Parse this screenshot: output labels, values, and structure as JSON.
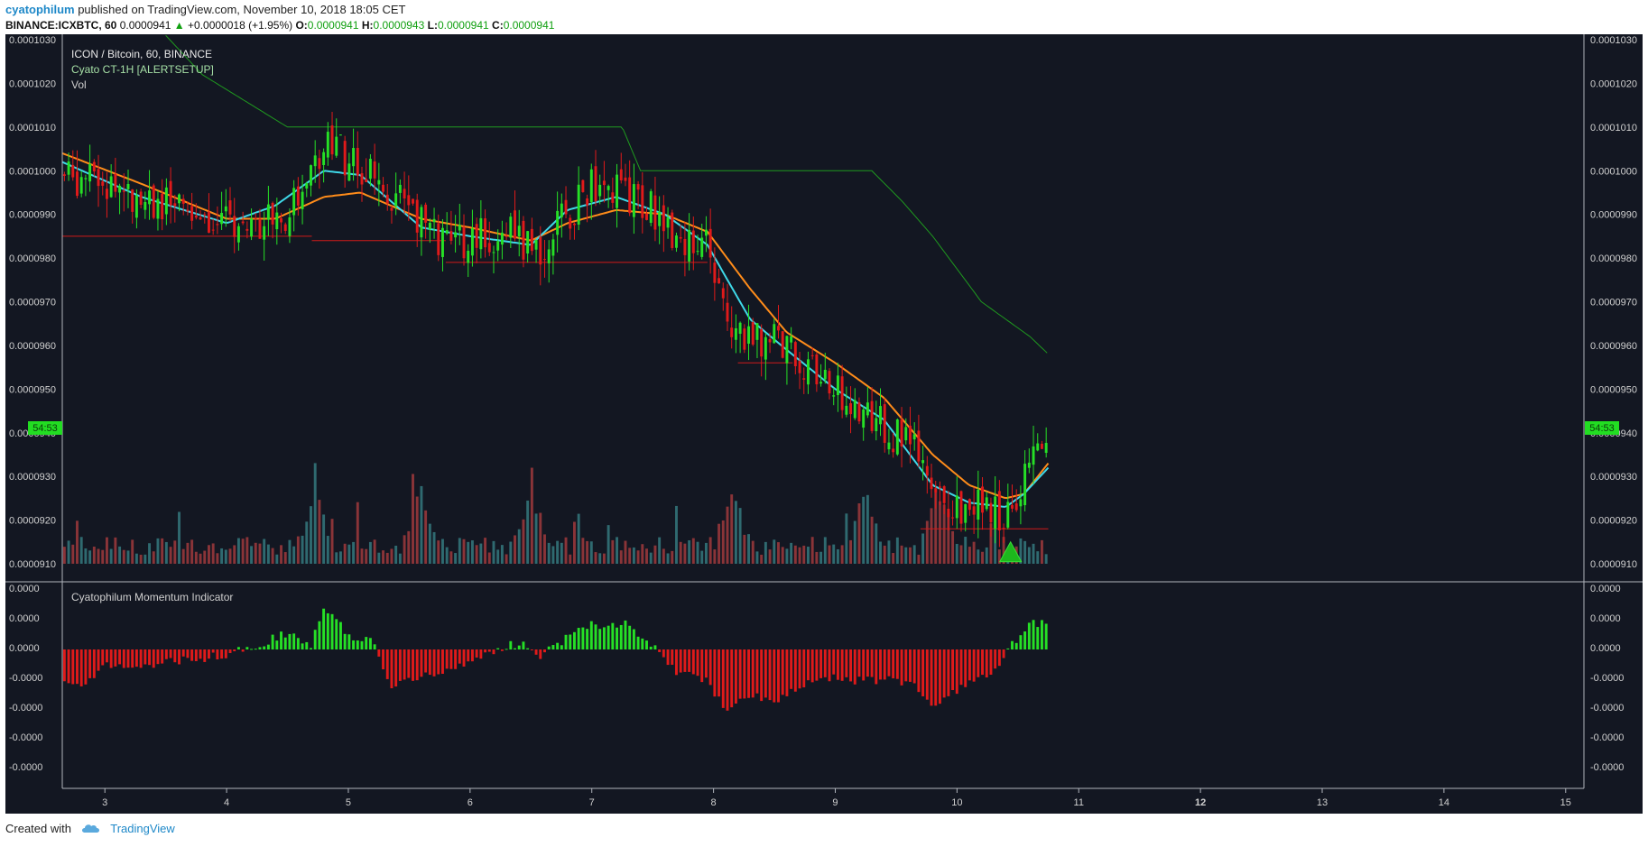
{
  "header": {
    "author": "cyatophilum",
    "published": "published on TradingView.com, November 10, 2018 18:05 CET",
    "symbol": "BINANCE:ICXBTC, 60",
    "last": "0.0000941",
    "change": "+0.0000018 (+1.95%)",
    "o_label": "O:",
    "o_val": "0.0000941",
    "h_label": "H:",
    "h_val": "0.0000943",
    "l_label": "L:",
    "l_val": "0.0000941",
    "c_label": "C:",
    "c_val": "0.0000941"
  },
  "legend": {
    "title": "ICON / Bitcoin, 60, BINANCE",
    "indicator": "Cyato CT-1H [ALERTSETUP]",
    "vol": "Vol",
    "momentum": "Cyatophilum Momentum Indicator"
  },
  "price_badge": "54:53",
  "footer": {
    "created": "Created with",
    "brand": "TradingView"
  },
  "colors": {
    "background": "#131722",
    "up": "#26e026",
    "down": "#e01a1a",
    "ema_fast": "#3fd8e8",
    "ema_slow": "#ff8c1a",
    "trail": "#1f9a1f",
    "support": "#d01a1a",
    "vol_up": "#2f6a70",
    "vol_down": "#8a3438"
  },
  "chart_data": {
    "type": "candlestick",
    "price_axis": {
      "ylim": [
        9.06e-05,
        0.0001031
      ],
      "ticks": [
        "0.0001030",
        "0.0001020",
        "0.0001010",
        "0.0001000",
        "0.0000990",
        "0.0000980",
        "0.0000970",
        "0.0000960",
        "0.0000950",
        "0.0000940",
        "0.0000930",
        "0.0000920",
        "0.0000910"
      ]
    },
    "momentum_axis": {
      "ticks": [
        "0.0000",
        "0.0000",
        "0.0000",
        "-0.0000",
        "-0.0000",
        "-0.0000",
        "-0.0000"
      ]
    },
    "x_axis": {
      "day_labels": [
        "3",
        "4",
        "5",
        "6",
        "7",
        "8",
        "9",
        "10",
        "11",
        "12",
        "13",
        "14",
        "15"
      ],
      "bold_labels": [
        "12"
      ],
      "day_range": [
        2.65,
        15.15
      ]
    },
    "price_keypoints": [
      [
        2.65,
        99.9
      ],
      [
        3.0,
        99.7
      ],
      [
        3.5,
        99.2
      ],
      [
        4.0,
        98.8
      ],
      [
        4.3,
        98.9
      ],
      [
        4.5,
        99.0
      ],
      [
        4.75,
        100.2
      ],
      [
        4.85,
        100.9
      ],
      [
        5.0,
        100.2
      ],
      [
        5.3,
        99.6
      ],
      [
        5.6,
        98.9
      ],
      [
        5.8,
        98.2
      ],
      [
        6.0,
        98.5
      ],
      [
        6.3,
        98.6
      ],
      [
        6.55,
        98.1
      ],
      [
        6.75,
        98.8
      ],
      [
        7.0,
        99.7
      ],
      [
        7.3,
        99.4
      ],
      [
        7.55,
        99.0
      ],
      [
        7.7,
        98.5
      ],
      [
        7.95,
        98.2
      ],
      [
        8.1,
        96.8
      ],
      [
        8.3,
        96.0
      ],
      [
        8.5,
        96.3
      ],
      [
        8.7,
        95.6
      ],
      [
        8.9,
        95.1
      ],
      [
        9.1,
        94.8
      ],
      [
        9.4,
        94.1
      ],
      [
        9.65,
        93.6
      ],
      [
        9.8,
        92.4
      ],
      [
        10.0,
        92.3
      ],
      [
        10.2,
        92.3
      ],
      [
        10.35,
        92.1
      ],
      [
        10.5,
        92.5
      ],
      [
        10.6,
        93.2
      ],
      [
        10.75,
        94.1
      ]
    ],
    "ema_slow_keypoints": [
      [
        2.65,
        100.4
      ],
      [
        3.3,
        99.7
      ],
      [
        4.0,
        98.9
      ],
      [
        4.4,
        98.9
      ],
      [
        4.8,
        99.4
      ],
      [
        5.1,
        99.5
      ],
      [
        5.6,
        98.9
      ],
      [
        6.0,
        98.7
      ],
      [
        6.5,
        98.4
      ],
      [
        6.8,
        98.8
      ],
      [
        7.2,
        99.1
      ],
      [
        7.6,
        99.0
      ],
      [
        7.95,
        98.6
      ],
      [
        8.3,
        97.3
      ],
      [
        8.6,
        96.3
      ],
      [
        9.0,
        95.6
      ],
      [
        9.4,
        94.8
      ],
      [
        9.8,
        93.5
      ],
      [
        10.1,
        92.8
      ],
      [
        10.4,
        92.5
      ],
      [
        10.55,
        92.6
      ],
      [
        10.75,
        93.3
      ]
    ],
    "ema_fast_keypoints": [
      [
        2.65,
        100.2
      ],
      [
        3.3,
        99.4
      ],
      [
        4.0,
        98.8
      ],
      [
        4.4,
        99.2
      ],
      [
        4.8,
        100.0
      ],
      [
        5.1,
        99.9
      ],
      [
        5.6,
        98.7
      ],
      [
        6.0,
        98.5
      ],
      [
        6.5,
        98.3
      ],
      [
        6.8,
        99.1
      ],
      [
        7.2,
        99.4
      ],
      [
        7.6,
        99.0
      ],
      [
        7.95,
        98.3
      ],
      [
        8.3,
        96.6
      ],
      [
        8.6,
        95.9
      ],
      [
        9.0,
        95.0
      ],
      [
        9.4,
        94.3
      ],
      [
        9.8,
        92.8
      ],
      [
        10.1,
        92.4
      ],
      [
        10.4,
        92.3
      ],
      [
        10.55,
        92.6
      ],
      [
        10.75,
        93.2
      ]
    ],
    "trail_keypoints": [
      [
        3.5,
        103.1
      ],
      [
        3.8,
        102.2
      ],
      [
        4.5,
        101.0
      ],
      [
        7.25,
        101.0
      ],
      [
        7.4,
        100.0
      ],
      [
        9.3,
        100.0
      ],
      [
        9.55,
        99.3
      ],
      [
        9.8,
        98.5
      ],
      [
        10.2,
        97.0
      ],
      [
        10.6,
        96.2
      ],
      [
        10.75,
        95.8
      ]
    ],
    "support_levels": [
      [
        2.65,
        4.7,
        98.5
      ],
      [
        4.7,
        5.8,
        98.4
      ],
      [
        5.8,
        7.95,
        97.9
      ],
      [
        8.2,
        8.65,
        95.6
      ],
      [
        9.7,
        10.75,
        91.8
      ]
    ],
    "signal_marker": {
      "day": 10.44,
      "price": 91.5,
      "direction": "up"
    },
    "volume_peaks": [
      4.73,
      8.15,
      6.5,
      5.6,
      9.25,
      9.85
    ],
    "momentum_keypoints": [
      [
        2.65,
        -1.0
      ],
      [
        2.8,
        -1.3
      ],
      [
        3.0,
        -0.6
      ],
      [
        3.5,
        -0.5
      ],
      [
        4.0,
        -0.2
      ],
      [
        4.2,
        0.1
      ],
      [
        4.5,
        0.6
      ],
      [
        4.7,
        0.2
      ],
      [
        4.8,
        1.6
      ],
      [
        5.0,
        0.5
      ],
      [
        5.2,
        0.3
      ],
      [
        5.35,
        -1.3
      ],
      [
        5.6,
        -1.0
      ],
      [
        6.0,
        -0.5
      ],
      [
        6.3,
        0.1
      ],
      [
        6.45,
        0.3
      ],
      [
        6.55,
        -0.3
      ],
      [
        6.7,
        0.2
      ],
      [
        7.0,
        0.9
      ],
      [
        7.3,
        1.0
      ],
      [
        7.5,
        0.1
      ],
      [
        7.7,
        -0.8
      ],
      [
        7.95,
        -1.2
      ],
      [
        8.1,
        -2.2
      ],
      [
        8.3,
        -1.6
      ],
      [
        8.5,
        -2.0
      ],
      [
        8.7,
        -1.4
      ],
      [
        8.9,
        -1.0
      ],
      [
        9.1,
        -1.2
      ],
      [
        9.4,
        -1.1
      ],
      [
        9.65,
        -1.3
      ],
      [
        9.8,
        -2.0
      ],
      [
        10.0,
        -1.5
      ],
      [
        10.3,
        -0.9
      ],
      [
        10.45,
        0.2
      ],
      [
        10.6,
        0.9
      ],
      [
        10.75,
        1.1
      ]
    ]
  }
}
